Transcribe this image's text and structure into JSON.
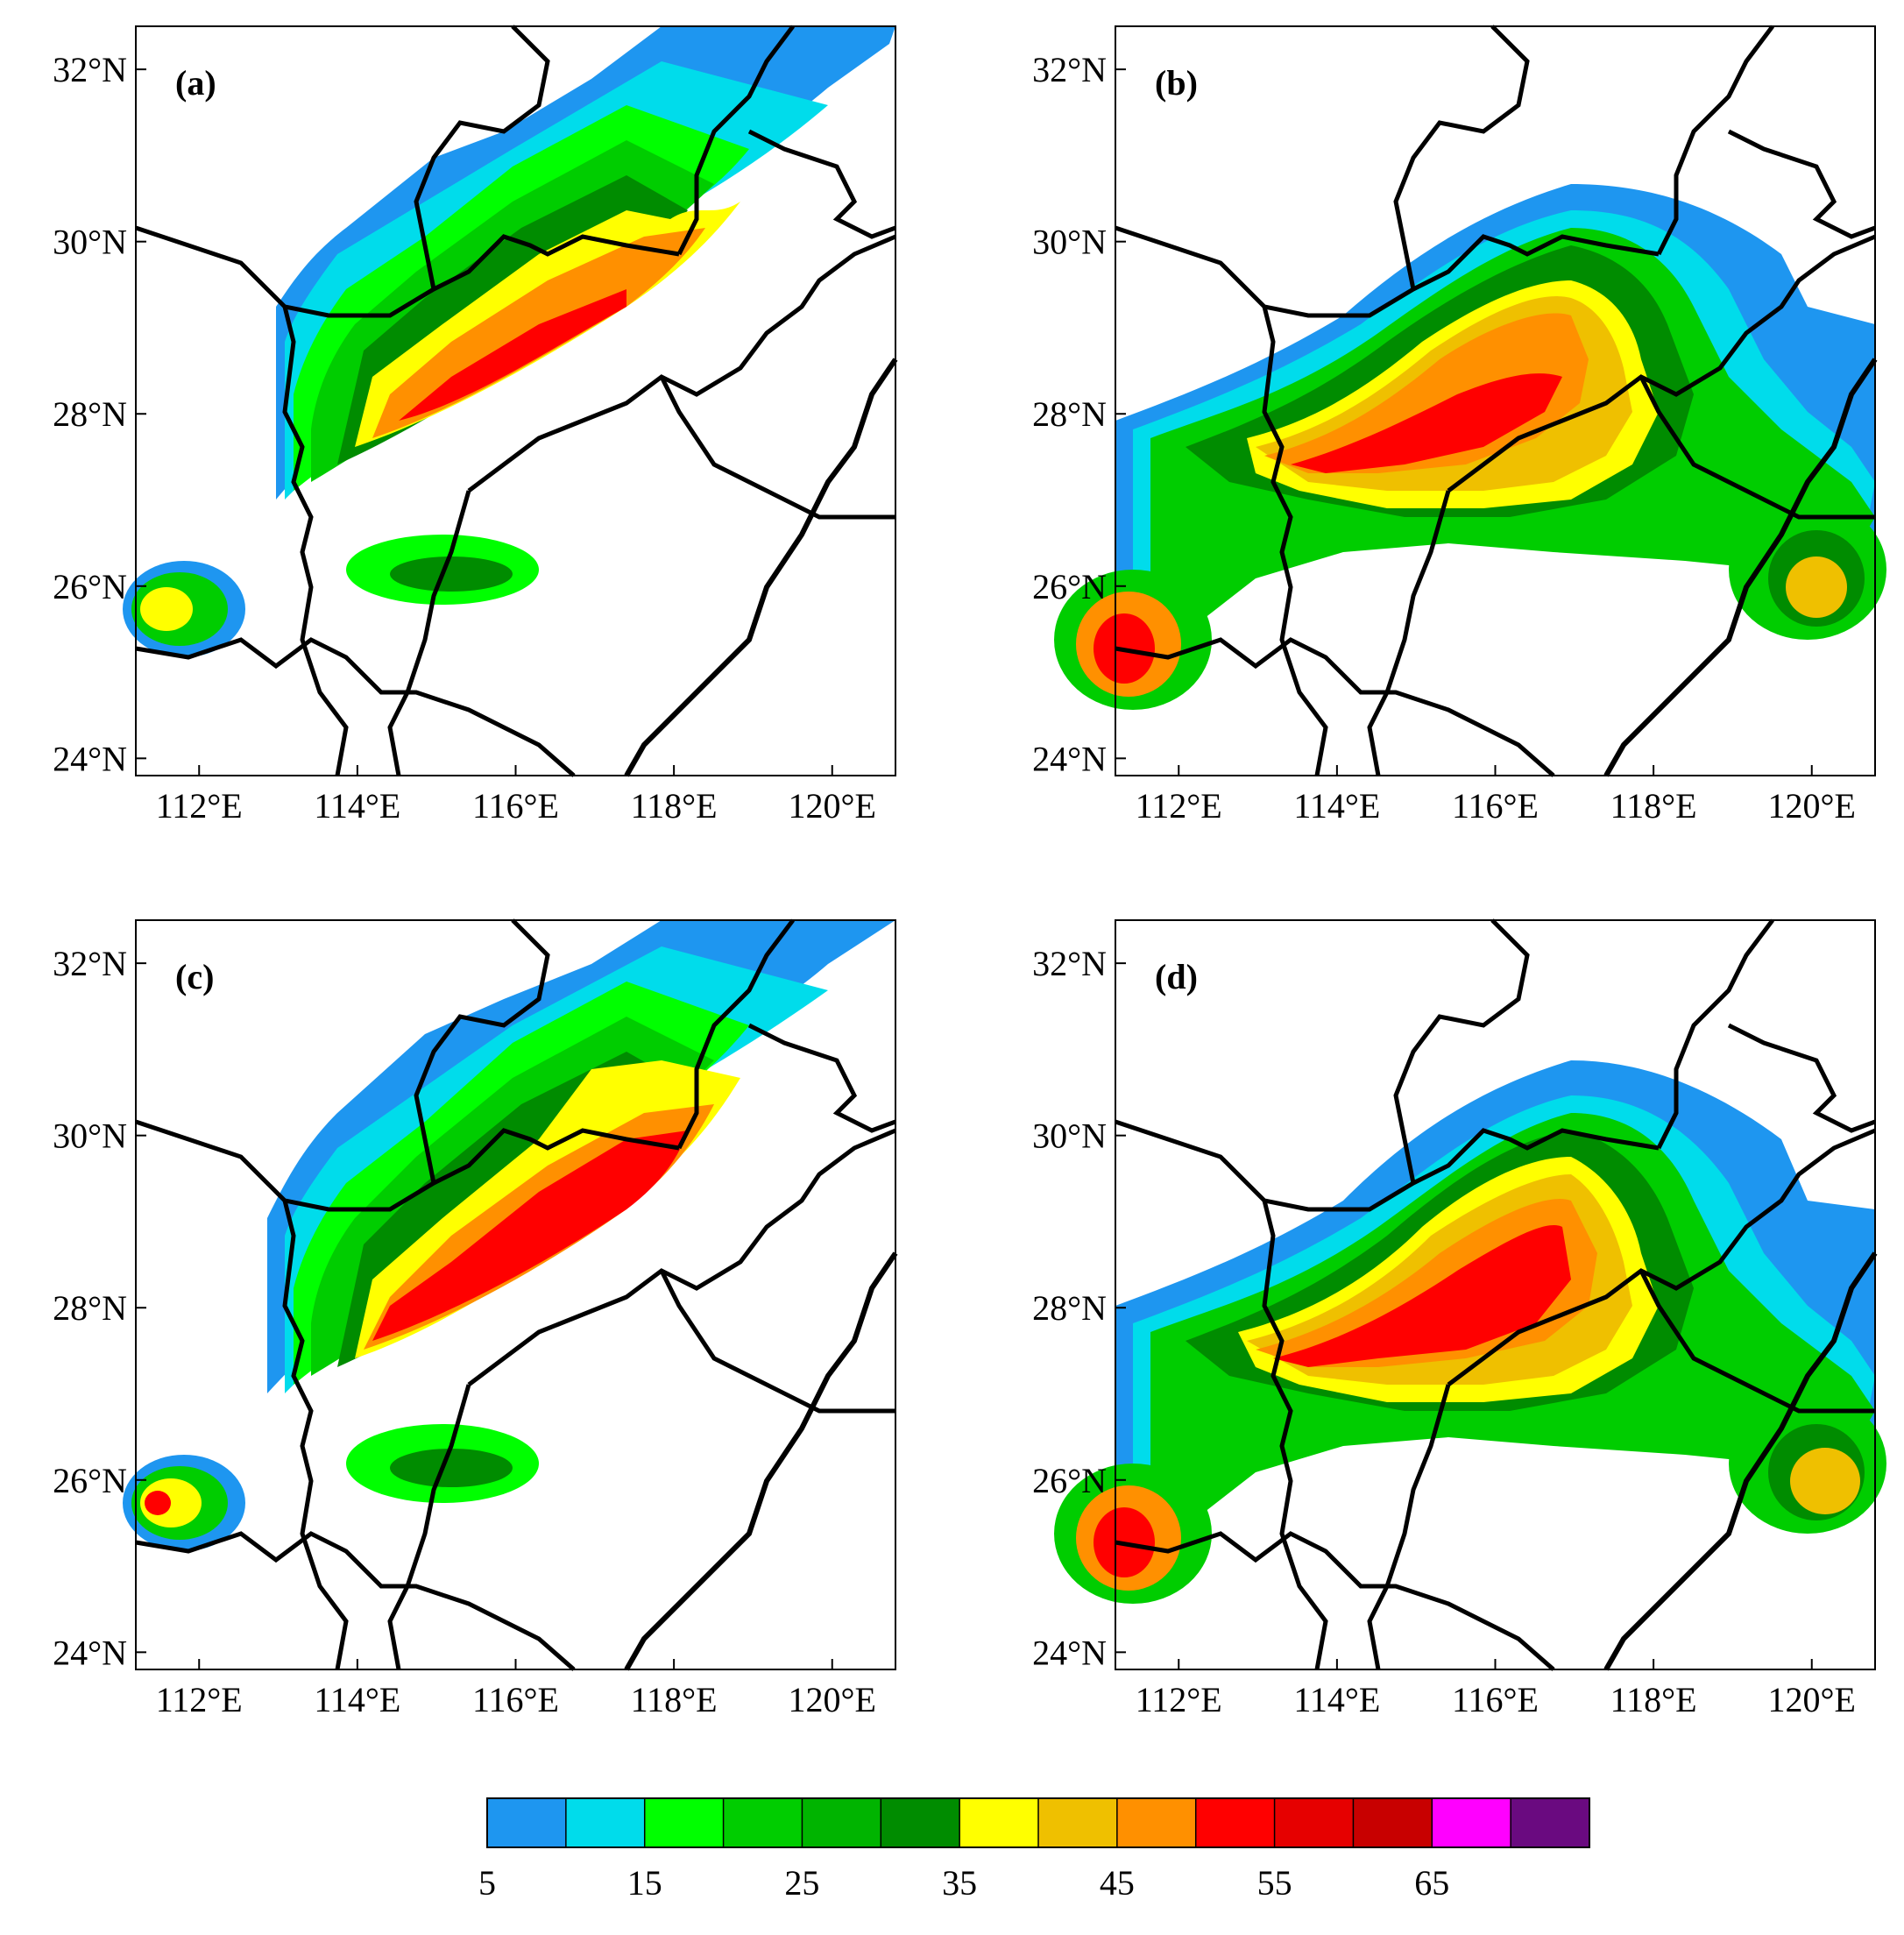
{
  "panels": [
    {
      "label": "(a)"
    },
    {
      "label": "(b)"
    },
    {
      "label": "(c)"
    },
    {
      "label": "(d)"
    }
  ],
  "axes": {
    "lon_range": [
      111.2,
      120.8
    ],
    "lat_range": [
      23.8,
      32.5
    ],
    "lon_ticks": [
      "112°E",
      "114°E",
      "116°E",
      "118°E",
      "120°E"
    ],
    "lon_tick_values": [
      112,
      114,
      116,
      118,
      120
    ],
    "lat_ticks": [
      "32°N",
      "30°N",
      "28°N",
      "26°N",
      "24°N"
    ],
    "lat_tick_values": [
      32,
      30,
      28,
      26,
      24
    ]
  },
  "colorbar": {
    "levels": [
      5,
      10,
      15,
      20,
      25,
      30,
      35,
      40,
      45,
      50,
      55,
      60,
      65,
      70
    ],
    "colors": [
      "#1e96f0",
      "#00dceb",
      "#00ff00",
      "#00cd00",
      "#00b400",
      "#008c00",
      "#ffff00",
      "#efc000",
      "#ff9000",
      "#ff0000",
      "#e60000",
      "#c80000",
      "#ff00ff",
      "#6a0a80"
    ],
    "tick_labels": [
      "5",
      "15",
      "25",
      "35",
      "45",
      "55",
      "65"
    ]
  }
}
